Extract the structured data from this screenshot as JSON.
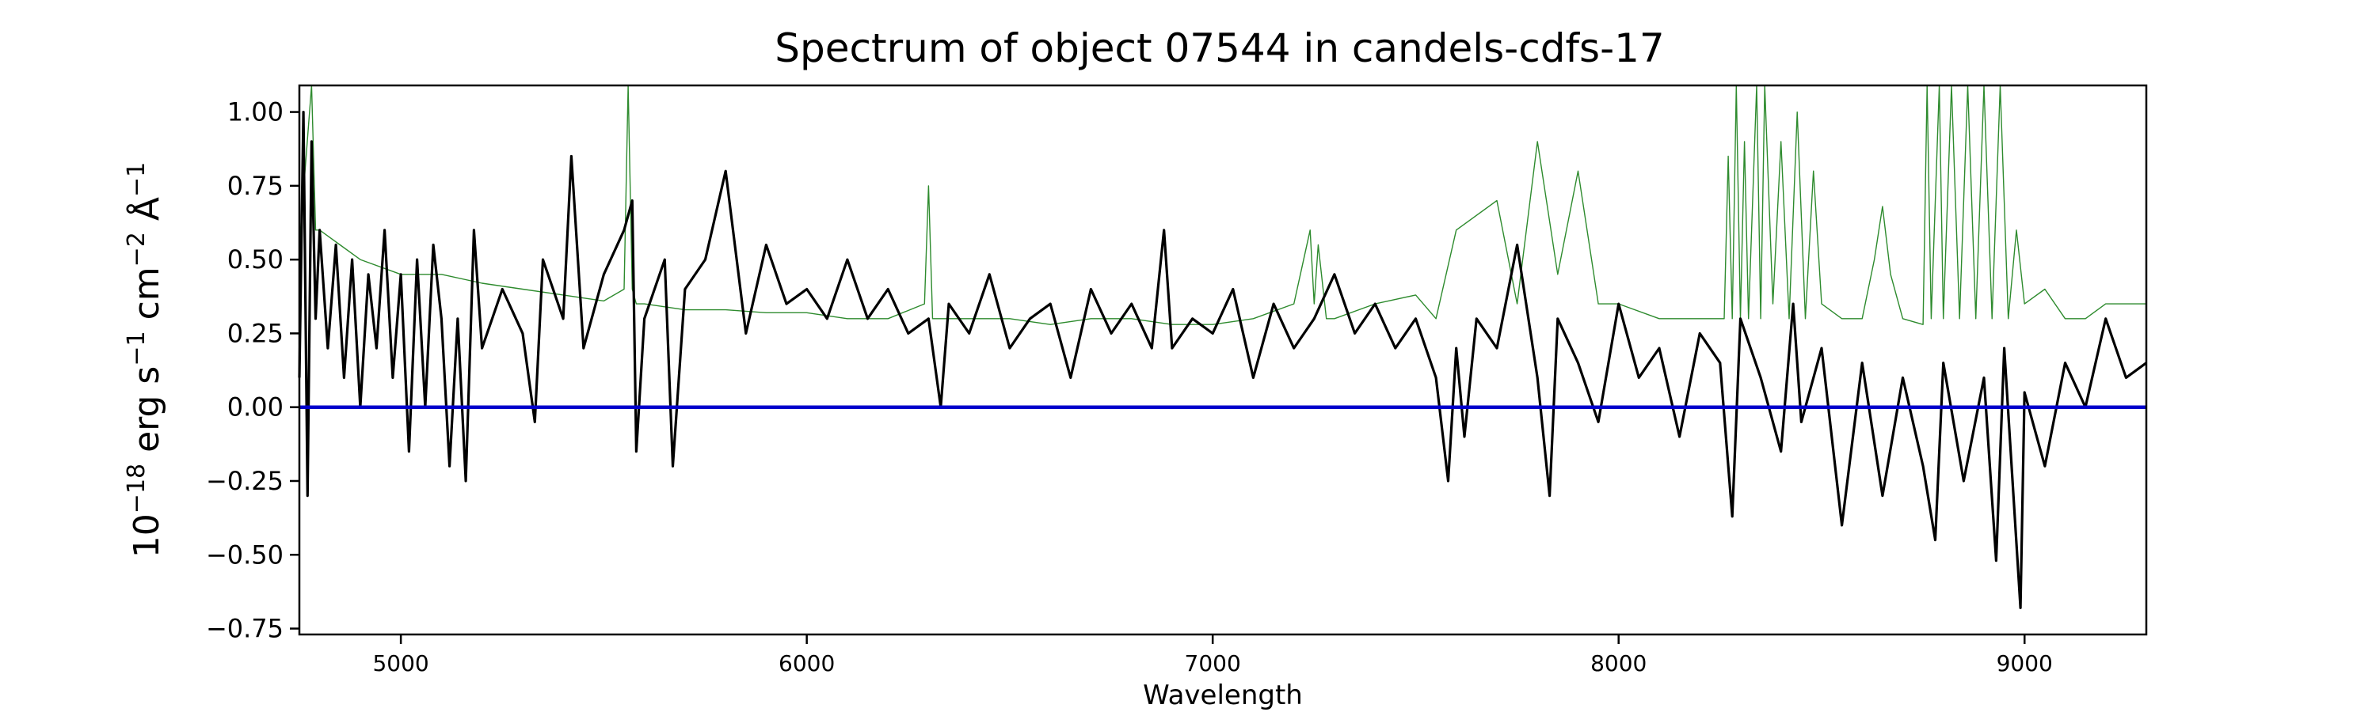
{
  "chart_data": {
    "type": "line",
    "title": "Spectrum of object 07544 in candels-cdfs-17",
    "xlabel": "Wavelength",
    "ylabel_base": "10",
    "ylabel_exp": "−18",
    "ylabel_unit_1": " erg s",
    "ylabel_unit_1_exp": "−1",
    "ylabel_unit_2": " cm",
    "ylabel_unit_2_exp": "−2",
    "ylabel_unit_3": " Å",
    "ylabel_unit_3_exp": "−1",
    "xlim": [
      4750,
      9300
    ],
    "ylim": [
      -0.77,
      1.09
    ],
    "xticks": [
      5000,
      6000,
      7000,
      8000,
      9000
    ],
    "xtick_labels": [
      "5000",
      "6000",
      "7000",
      "8000",
      "9000"
    ],
    "yticks": [
      -0.75,
      -0.5,
      -0.25,
      0.0,
      0.25,
      0.5,
      0.75,
      1.0
    ],
    "ytick_labels": [
      "−0.75",
      "−0.50",
      "−0.25",
      "0.00",
      "0.25",
      "0.50",
      "0.75",
      "1.00"
    ],
    "grid": false,
    "series": [
      {
        "role": "flux",
        "color": "#000000",
        "x": [
          4750,
          4760,
          4770,
          4780,
          4790,
          4800,
          4820,
          4840,
          4860,
          4880,
          4900,
          4920,
          4940,
          4960,
          4980,
          5000,
          5020,
          5040,
          5060,
          5080,
          5100,
          5120,
          5140,
          5160,
          5180,
          5200,
          5250,
          5300,
          5330,
          5350,
          5400,
          5420,
          5450,
          5500,
          5550,
          5570,
          5580,
          5600,
          5650,
          5670,
          5700,
          5750,
          5800,
          5850,
          5900,
          5950,
          6000,
          6050,
          6100,
          6150,
          6200,
          6250,
          6300,
          6330,
          6350,
          6400,
          6450,
          6500,
          6550,
          6600,
          6650,
          6700,
          6750,
          6800,
          6850,
          6880,
          6900,
          6950,
          7000,
          7050,
          7100,
          7150,
          7200,
          7250,
          7300,
          7350,
          7400,
          7450,
          7500,
          7550,
          7580,
          7600,
          7620,
          7650,
          7700,
          7750,
          7800,
          7830,
          7850,
          7900,
          7950,
          8000,
          8050,
          8100,
          8150,
          8200,
          8250,
          8280,
          8300,
          8350,
          8400,
          8430,
          8450,
          8500,
          8550,
          8600,
          8650,
          8700,
          8750,
          8780,
          8800,
          8850,
          8900,
          8930,
          8950,
          8990,
          9000,
          9050,
          9100,
          9150,
          9200,
          9250,
          9300
        ],
        "y": [
          0.1,
          1.0,
          -0.3,
          0.9,
          0.3,
          0.6,
          0.2,
          0.55,
          0.1,
          0.5,
          0.0,
          0.45,
          0.2,
          0.6,
          0.1,
          0.45,
          -0.15,
          0.5,
          0.0,
          0.55,
          0.3,
          -0.2,
          0.3,
          -0.25,
          0.6,
          0.2,
          0.4,
          0.25,
          -0.05,
          0.5,
          0.3,
          0.85,
          0.2,
          0.45,
          0.6,
          0.7,
          -0.15,
          0.3,
          0.5,
          -0.2,
          0.4,
          0.5,
          0.8,
          0.25,
          0.55,
          0.35,
          0.4,
          0.3,
          0.5,
          0.3,
          0.4,
          0.25,
          0.3,
          0.0,
          0.35,
          0.25,
          0.45,
          0.2,
          0.3,
          0.35,
          0.1,
          0.4,
          0.25,
          0.35,
          0.2,
          0.6,
          0.2,
          0.3,
          0.25,
          0.4,
          0.1,
          0.35,
          0.2,
          0.3,
          0.45,
          0.25,
          0.35,
          0.2,
          0.3,
          0.1,
          -0.25,
          0.2,
          -0.1,
          0.3,
          0.2,
          0.55,
          0.1,
          -0.3,
          0.3,
          0.15,
          -0.05,
          0.35,
          0.1,
          0.2,
          -0.1,
          0.25,
          0.15,
          -0.37,
          0.3,
          0.1,
          -0.15,
          0.35,
          -0.05,
          0.2,
          -0.4,
          0.15,
          -0.3,
          0.1,
          -0.2,
          -0.45,
          0.15,
          -0.25,
          0.1,
          -0.52,
          0.2,
          -0.68,
          0.05,
          -0.2,
          0.15,
          0.0,
          0.3,
          0.1,
          0.15
        ]
      },
      {
        "role": "model",
        "color": "#2e8b2e",
        "x": [
          4750,
          4780,
          4790,
          4800,
          4820,
          4850,
          4900,
          5000,
          5100,
          5200,
          5300,
          5400,
          5500,
          5550,
          5560,
          5570,
          5580,
          5600,
          5700,
          5800,
          5900,
          6000,
          6100,
          6200,
          6290,
          6300,
          6310,
          6400,
          6500,
          6600,
          6700,
          6800,
          6900,
          7000,
          7100,
          7200,
          7240,
          7250,
          7260,
          7280,
          7300,
          7400,
          7500,
          7550,
          7600,
          7700,
          7750,
          7800,
          7850,
          7900,
          7950,
          8000,
          8100,
          8200,
          8260,
          8270,
          8280,
          8290,
          8300,
          8310,
          8320,
          8340,
          8350,
          8360,
          8380,
          8400,
          8420,
          8440,
          8460,
          8480,
          8500,
          8550,
          8600,
          8630,
          8650,
          8670,
          8700,
          8750,
          8760,
          8770,
          8790,
          8800,
          8820,
          8840,
          8860,
          8880,
          8900,
          8920,
          8940,
          8960,
          8980,
          9000,
          9050,
          9100,
          9150,
          9200,
          9250,
          9300
        ],
        "y": [
          0.55,
          1.09,
          0.6,
          0.6,
          0.58,
          0.55,
          0.5,
          0.45,
          0.45,
          0.42,
          0.4,
          0.38,
          0.36,
          0.4,
          1.09,
          0.4,
          0.35,
          0.35,
          0.33,
          0.33,
          0.32,
          0.32,
          0.3,
          0.3,
          0.35,
          0.75,
          0.3,
          0.3,
          0.3,
          0.28,
          0.3,
          0.3,
          0.28,
          0.28,
          0.3,
          0.35,
          0.6,
          0.35,
          0.55,
          0.3,
          0.3,
          0.35,
          0.38,
          0.3,
          0.6,
          0.7,
          0.35,
          0.9,
          0.45,
          0.8,
          0.35,
          0.35,
          0.3,
          0.3,
          0.3,
          0.85,
          0.3,
          1.09,
          0.3,
          0.9,
          0.3,
          1.09,
          0.3,
          1.09,
          0.35,
          0.9,
          0.3,
          1.0,
          0.3,
          0.8,
          0.35,
          0.3,
          0.3,
          0.5,
          0.68,
          0.45,
          0.3,
          0.28,
          1.09,
          0.3,
          1.09,
          0.3,
          1.09,
          0.3,
          1.09,
          0.3,
          1.09,
          0.3,
          1.09,
          0.3,
          0.6,
          0.35,
          0.4,
          0.3,
          0.3,
          0.35,
          0.35,
          0.35
        ]
      },
      {
        "role": "zero",
        "color": "#0000cc",
        "x": [
          4750,
          9300
        ],
        "y": [
          0.0,
          0.0
        ]
      }
    ]
  }
}
